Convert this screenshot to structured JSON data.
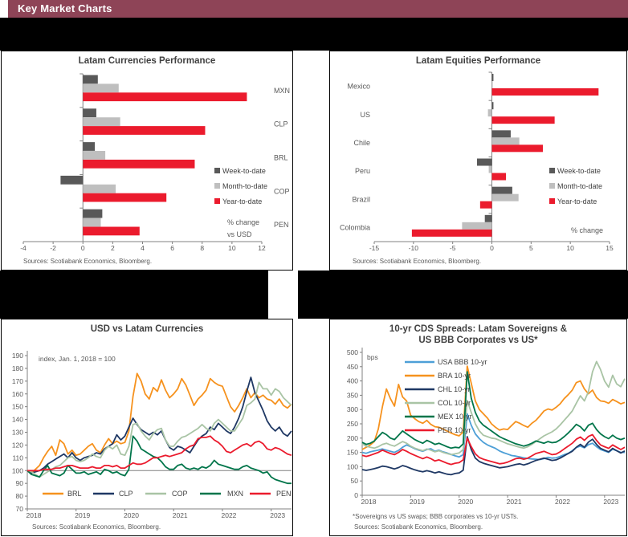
{
  "header": {
    "title": "Key Market Charts"
  },
  "colors": {
    "header_bar": "#8E4457",
    "week_to_date": "#595959",
    "month_to_date": "#BFBFBF",
    "year_to_date": "#EB1B2D",
    "orange": "#F6921E",
    "navy": "#1F3864",
    "sage": "#A9C4A5",
    "dark_green": "#00754A",
    "red": "#EB1B2D",
    "light_blue": "#4D9FD7"
  },
  "chart_data": [
    {
      "id": "latam-currencies",
      "type": "bar",
      "orientation": "horizontal",
      "title": "Latam Currencies Performance",
      "categories": [
        "MXN",
        "CLP",
        "BRL",
        "COP",
        "PEN"
      ],
      "series": [
        {
          "name": "Week-to-date",
          "color": "#595959",
          "values": [
            1.0,
            0.9,
            0.8,
            -1.5,
            1.3
          ]
        },
        {
          "name": "Month-to-date",
          "color": "#BFBFBF",
          "values": [
            2.4,
            2.5,
            1.5,
            2.2,
            1.2
          ]
        },
        {
          "name": "Year-to-date",
          "color": "#EB1B2D",
          "values": [
            11.0,
            8.2,
            7.5,
            5.6,
            3.8
          ]
        }
      ],
      "xlim": [
        -4,
        12
      ],
      "xticks": [
        -4,
        -2,
        0,
        2,
        4,
        6,
        8,
        10,
        12
      ],
      "grid": false,
      "legend_position": "right",
      "axis_note": "% change\nvs USD",
      "source": "Sources: Scotiabank Economics, Bloomberg."
    },
    {
      "id": "latam-equities",
      "type": "bar",
      "orientation": "horizontal",
      "title": "Latam Equities Performance",
      "categories": [
        "Mexico",
        "US",
        "Chile",
        "Peru",
        "Brazil",
        "Colombia"
      ],
      "series": [
        {
          "name": "Week-to-date",
          "color": "#595959",
          "values": [
            0.2,
            0.2,
            2.4,
            -1.9,
            2.6,
            -0.9
          ]
        },
        {
          "name": "Month-to-date",
          "color": "#BFBFBF",
          "values": [
            0.1,
            -0.5,
            3.5,
            -0.4,
            3.4,
            -3.8
          ]
        },
        {
          "name": "Year-to-date",
          "color": "#EB1B2D",
          "values": [
            13.6,
            8.0,
            6.5,
            1.8,
            -1.5,
            -10.2
          ]
        }
      ],
      "xlim": [
        -15,
        15
      ],
      "xticks": [
        -15,
        -10,
        -5,
        0,
        5,
        10,
        15
      ],
      "grid": false,
      "legend_position": "right",
      "axis_note": "% change",
      "source": "Sources: Scotiabank Economics, Bloomberg."
    },
    {
      "id": "usd-vs-latam-currencies",
      "type": "line",
      "title": "USD vs Latam Currencies",
      "axis_note": "index, Jan. 1, 2018 = 100",
      "ylim": [
        70,
        190
      ],
      "yticks": [
        70,
        80,
        90,
        100,
        110,
        120,
        130,
        140,
        150,
        160,
        170,
        180,
        190
      ],
      "xticks": [
        2018,
        2019,
        2020,
        2021,
        2022,
        2023
      ],
      "x_start": 2018,
      "x_step": "monthly",
      "refline": 100,
      "legend_position": "bottom-inside",
      "source": "Sources: Scotiabank Economics, Bloomberg.",
      "series": [
        {
          "name": "BRL",
          "color": "#F6921E",
          "values": [
            100,
            98,
            101,
            104,
            110,
            115,
            119,
            112,
            124,
            121,
            113,
            116,
            112,
            113,
            116,
            119,
            121,
            116,
            114,
            120,
            125,
            121,
            123,
            121,
            122,
            131,
            158,
            176,
            170,
            160,
            156,
            165,
            162,
            171,
            163,
            157,
            160,
            164,
            172,
            167,
            159,
            151,
            156,
            159,
            163,
            172,
            169,
            167,
            166,
            158,
            150,
            146,
            151,
            157,
            164,
            157,
            161,
            157,
            159,
            156,
            155,
            152,
            156,
            151,
            149,
            152
          ]
        },
        {
          "name": "CLP",
          "color": "#1F3864",
          "values": [
            100,
            98,
            99,
            100,
            102,
            105,
            107,
            109,
            111,
            113,
            110,
            114,
            110,
            108,
            110,
            111,
            112,
            114,
            113,
            117,
            119,
            121,
            128,
            124,
            127,
            134,
            141,
            136,
            132,
            130,
            128,
            130,
            128,
            131,
            124,
            118,
            116,
            119,
            118,
            116,
            114,
            119,
            124,
            127,
            129,
            134,
            132,
            137,
            134,
            131,
            129,
            134,
            141,
            150,
            162,
            173,
            161,
            154,
            147,
            139,
            134,
            131,
            134,
            129,
            127,
            131
          ]
        },
        {
          "name": "COP",
          "color": "#A9C4A5",
          "values": [
            100,
            99,
            97,
            95,
            97,
            99,
            101,
            103,
            104,
            107,
            110,
            111,
            108,
            107,
            108,
            110,
            113,
            111,
            110,
            116,
            119,
            117,
            120,
            113,
            112,
            119,
            136,
            137,
            131,
            127,
            124,
            129,
            132,
            133,
            124,
            119,
            119,
            123,
            126,
            127,
            129,
            131,
            133,
            136,
            133,
            131,
            137,
            140,
            137,
            134,
            131,
            131,
            136,
            141,
            151,
            153,
            156,
            169,
            164,
            164,
            159,
            164,
            162,
            157,
            154,
            151
          ]
        },
        {
          "name": "MXN",
          "color": "#00754A",
          "values": [
            100,
            97,
            96,
            95,
            100,
            104,
            98,
            97,
            96,
            98,
            104,
            101,
            98,
            98,
            99,
            97,
            98,
            99,
            97,
            101,
            100,
            98,
            99,
            97,
            96,
            101,
            127,
            123,
            117,
            115,
            113,
            111,
            110,
            107,
            103,
            101,
            101,
            104,
            105,
            102,
            101,
            102,
            101,
            103,
            102,
            104,
            108,
            105,
            104,
            103,
            102,
            101,
            101,
            103,
            104,
            102,
            101,
            100,
            98,
            99,
            95,
            93,
            92,
            91,
            90,
            90
          ]
        },
        {
          "name": "PEN",
          "color": "#EB1B2D",
          "values": [
            100,
            100,
            100,
            100,
            101,
            101,
            101,
            102,
            102,
            103,
            104,
            104,
            103,
            102,
            102,
            102,
            103,
            102,
            102,
            104,
            104,
            103,
            104,
            102,
            102,
            104,
            106,
            105,
            105,
            106,
            108,
            110,
            110,
            111,
            112,
            111,
            112,
            113,
            114,
            117,
            119,
            120,
            125,
            126,
            126,
            127,
            124,
            122,
            119,
            115,
            114,
            116,
            118,
            120,
            121,
            119,
            122,
            123,
            121,
            117,
            116,
            118,
            117,
            115,
            113,
            112
          ]
        }
      ]
    },
    {
      "id": "cds-spreads",
      "type": "line",
      "title": "10-yr CDS Spreads: Latam Sovereigns &\nUS BBB Corporates vs US*",
      "axis_note": "bps",
      "ylim": [
        0,
        500
      ],
      "yticks": [
        0,
        50,
        100,
        150,
        200,
        250,
        300,
        350,
        400,
        450,
        500
      ],
      "xticks": [
        2018,
        2019,
        2020,
        2021,
        2022,
        2023
      ],
      "x_start": 2018,
      "x_step": "monthly",
      "legend_position": "top-left-inside",
      "footnote": "*Sovereigns vs US swaps; BBB corporates  vs 10-yr USTs.",
      "source": "Sources: Scotiabank Economics, Bloomberg.",
      "series": [
        {
          "name": "USA BBB 10-yr",
          "color": "#4D9FD7",
          "values": [
            150,
            147,
            152,
            155,
            158,
            162,
            158,
            154,
            150,
            157,
            168,
            176,
            170,
            163,
            158,
            154,
            160,
            163,
            154,
            158,
            152,
            148,
            143,
            138,
            134,
            142,
            285,
            245,
            215,
            198,
            185,
            176,
            170,
            164,
            155,
            149,
            144,
            139,
            137,
            134,
            131,
            129,
            127,
            126,
            125,
            128,
            133,
            130,
            131,
            136,
            142,
            147,
            156,
            167,
            172,
            166,
            177,
            182,
            170,
            160,
            155,
            150,
            161,
            156,
            150,
            150
          ]
        },
        {
          "name": "BRA 10-yr",
          "color": "#F6921E",
          "values": [
            160,
            168,
            176,
            188,
            232,
            310,
            372,
            338,
            312,
            388,
            344,
            330,
            280,
            268,
            258,
            252,
            262,
            248,
            240,
            238,
            232,
            225,
            218,
            212,
            208,
            222,
            452,
            392,
            330,
            300,
            285,
            270,
            250,
            238,
            228,
            232,
            230,
            244,
            258,
            252,
            244,
            238,
            252,
            262,
            278,
            295,
            302,
            298,
            308,
            320,
            338,
            352,
            368,
            394,
            400,
            372,
            355,
            368,
            342,
            330,
            328,
            322,
            335,
            328,
            320,
            325
          ]
        },
        {
          "name": "CHL 10-yr",
          "color": "#1F3864",
          "values": [
            90,
            87,
            90,
            93,
            97,
            102,
            100,
            96,
            92,
            97,
            104,
            100,
            94,
            89,
            85,
            82,
            86,
            83,
            78,
            82,
            78,
            74,
            72,
            76,
            78,
            88,
            205,
            160,
            130,
            118,
            112,
            108,
            104,
            100,
            96,
            98,
            100,
            104,
            108,
            110,
            106,
            110,
            116,
            122,
            126,
            130,
            126,
            122,
            124,
            130,
            138,
            146,
            154,
            168,
            178,
            168,
            186,
            196,
            178,
            164,
            158,
            152,
            164,
            156,
            148,
            155
          ]
        },
        {
          "name": "COL 10-yr",
          "color": "#A9C4A5",
          "values": [
            180,
            172,
            168,
            165,
            170,
            178,
            182,
            176,
            172,
            180,
            188,
            182,
            172,
            165,
            160,
            156,
            162,
            158,
            152,
            156,
            150,
            146,
            142,
            145,
            148,
            160,
            332,
            290,
            250,
            225,
            210,
            205,
            200,
            198,
            192,
            186,
            180,
            176,
            172,
            168,
            165,
            170,
            178,
            188,
            198,
            208,
            215,
            222,
            232,
            246,
            262,
            278,
            295,
            322,
            348,
            330,
            362,
            432,
            468,
            440,
            400,
            378,
            420,
            390,
            380,
            408
          ]
        },
        {
          "name": "MEX 10-yr",
          "color": "#00754A",
          "values": [
            185,
            178,
            182,
            190,
            205,
            220,
            212,
            200,
            195,
            210,
            225,
            215,
            205,
            195,
            188,
            182,
            192,
            186,
            178,
            182,
            176,
            170,
            165,
            168,
            166,
            180,
            432,
            340,
            290,
            260,
            245,
            235,
            225,
            215,
            205,
            198,
            192,
            186,
            180,
            176,
            172,
            176,
            182,
            190,
            186,
            182,
            188,
            184,
            186,
            194,
            205,
            218,
            232,
            248,
            240,
            225,
            245,
            252,
            230,
            215,
            205,
            198,
            210,
            200,
            195,
            200
          ]
        },
        {
          "name": "PER 10-yr",
          "color": "#EB1B2D",
          "values": [
            140,
            136,
            140,
            145,
            150,
            158,
            152,
            146,
            142,
            150,
            160,
            154,
            146,
            140,
            134,
            128,
            134,
            128,
            120,
            124,
            118,
            112,
            108,
            112,
            114,
            124,
            200,
            170,
            145,
            132,
            126,
            122,
            118,
            114,
            110,
            112,
            116,
            122,
            128,
            130,
            126,
            130,
            138,
            146,
            150,
            154,
            148,
            142,
            144,
            152,
            162,
            172,
            182,
            196,
            204,
            192,
            206,
            212,
            192,
            176,
            170,
            164,
            176,
            168,
            160,
            168
          ]
        }
      ]
    }
  ]
}
